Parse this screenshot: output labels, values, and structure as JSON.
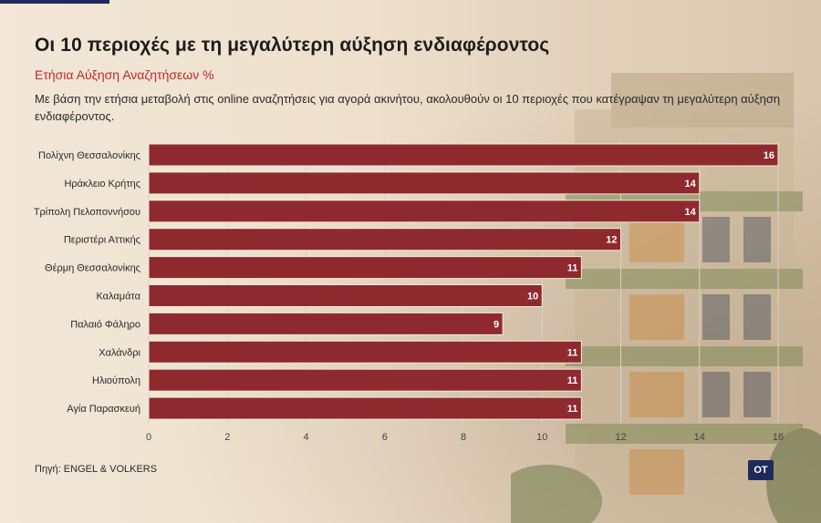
{
  "header": {
    "title": "Οι 10 περιοχές με τη μεγαλύτερη αύξηση ενδιαφέροντος",
    "subtitle": "Ετήσια Αύξηση Αναζητήσεων %",
    "description": "Με βάση την ετήσια μεταβολή στις online αναζητήσεις για αγορά ακινήτου, ακολουθούν οι 10 περιοχές που κατέγραψαν τη μεγαλύτερη αύξηση ενδιαφέροντος."
  },
  "footer": {
    "source": "Πηγή: ENGEL & VOLKERS",
    "logo": "ΟΤ"
  },
  "colors": {
    "bar": "#8e2a2e",
    "bar_edge": "#f4e9dc",
    "grid": "#d9d1c6",
    "title": "#1d1d1d",
    "subtitle": "#c0272d"
  },
  "chart_data": {
    "type": "bar",
    "orientation": "horizontal",
    "title": "Οι 10 περιοχές με τη μεγαλύτερη αύξηση ενδιαφέροντος",
    "subtitle": "Ετήσια Αύξηση Αναζητήσεων %",
    "categories": [
      "Πολίχνη Θεσσαλονίκης",
      "Ηράκλειο Κρήτης",
      "Τρίπολη Πελοποννήσου",
      "Περιστέρι Αττικής",
      "Θέρμη Θεσσαλονίκης",
      "Καλαμάτα",
      "Παλαιό Φάληρο",
      "Χαλάνδρι",
      "Ηλιούπολη",
      "Αγία Παρασκευή"
    ],
    "values": [
      16,
      14,
      14,
      12,
      11,
      10,
      9,
      11,
      11,
      11
    ],
    "xlim": [
      0,
      16
    ],
    "xticks": [
      0,
      2,
      4,
      6,
      8,
      10,
      12,
      14,
      16
    ],
    "grid": true,
    "data_labels": true
  }
}
